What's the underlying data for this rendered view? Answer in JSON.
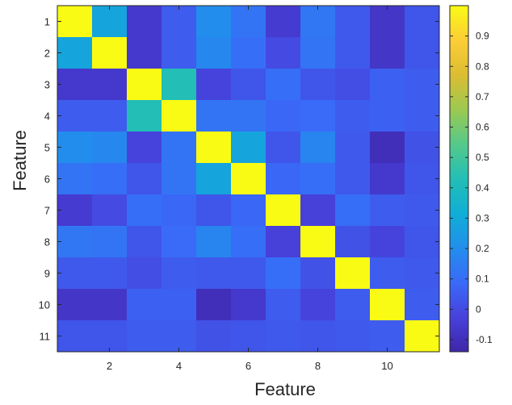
{
  "chart_data": {
    "type": "heatmap",
    "title": "",
    "xlabel": "Feature",
    "ylabel": "Feature",
    "rows": [
      "1",
      "2",
      "3",
      "4",
      "5",
      "6",
      "7",
      "8",
      "9",
      "10",
      "11"
    ],
    "columns": [
      "1",
      "2",
      "3",
      "4",
      "5",
      "6",
      "7",
      "8",
      "9",
      "10",
      "11"
    ],
    "x_tick_labels": [
      "2",
      "4",
      "6",
      "8",
      "10"
    ],
    "y_tick_labels": [
      "1",
      "2",
      "3",
      "4",
      "5",
      "6",
      "7",
      "8",
      "9",
      "10",
      "11"
    ],
    "values": [
      [
        1.0,
        0.28,
        -0.06,
        0.05,
        0.2,
        0.12,
        -0.05,
        0.13,
        0.04,
        -0.07,
        0.03
      ],
      [
        0.28,
        1.0,
        -0.06,
        0.05,
        0.18,
        0.1,
        0.0,
        0.12,
        0.04,
        -0.07,
        0.03
      ],
      [
        -0.06,
        -0.06,
        1.0,
        0.43,
        -0.02,
        0.03,
        0.1,
        0.03,
        0.01,
        0.06,
        0.05
      ],
      [
        0.05,
        0.05,
        0.43,
        1.0,
        0.12,
        0.12,
        0.08,
        0.09,
        0.05,
        0.06,
        0.05
      ],
      [
        0.2,
        0.18,
        -0.02,
        0.12,
        1.0,
        0.28,
        0.03,
        0.17,
        0.04,
        -0.1,
        0.02
      ],
      [
        0.12,
        0.1,
        0.03,
        0.12,
        0.28,
        1.0,
        0.08,
        0.1,
        0.04,
        -0.06,
        0.03
      ],
      [
        -0.05,
        0.0,
        0.1,
        0.08,
        0.03,
        0.08,
        1.0,
        -0.03,
        0.1,
        0.05,
        0.04
      ],
      [
        0.13,
        0.12,
        0.03,
        0.09,
        0.17,
        0.1,
        -0.03,
        1.0,
        0.02,
        -0.02,
        0.03
      ],
      [
        0.04,
        0.04,
        0.01,
        0.05,
        0.04,
        0.04,
        0.1,
        0.02,
        1.0,
        0.05,
        0.04
      ],
      [
        -0.07,
        -0.07,
        0.06,
        0.06,
        -0.1,
        -0.06,
        0.05,
        -0.02,
        0.05,
        1.0,
        0.05
      ],
      [
        0.03,
        0.03,
        0.05,
        0.05,
        0.02,
        0.03,
        0.04,
        0.03,
        0.04,
        0.05,
        1.0
      ]
    ],
    "colorbar": {
      "range": [
        -0.14,
        1.0
      ],
      "ticks": [
        "-0.1",
        "0",
        "0.1",
        "0.2",
        "0.3",
        "0.4",
        "0.5",
        "0.6",
        "0.7",
        "0.8",
        "0.9"
      ],
      "colormap": "parula"
    },
    "grid": false,
    "legend": "colorbar-right"
  }
}
